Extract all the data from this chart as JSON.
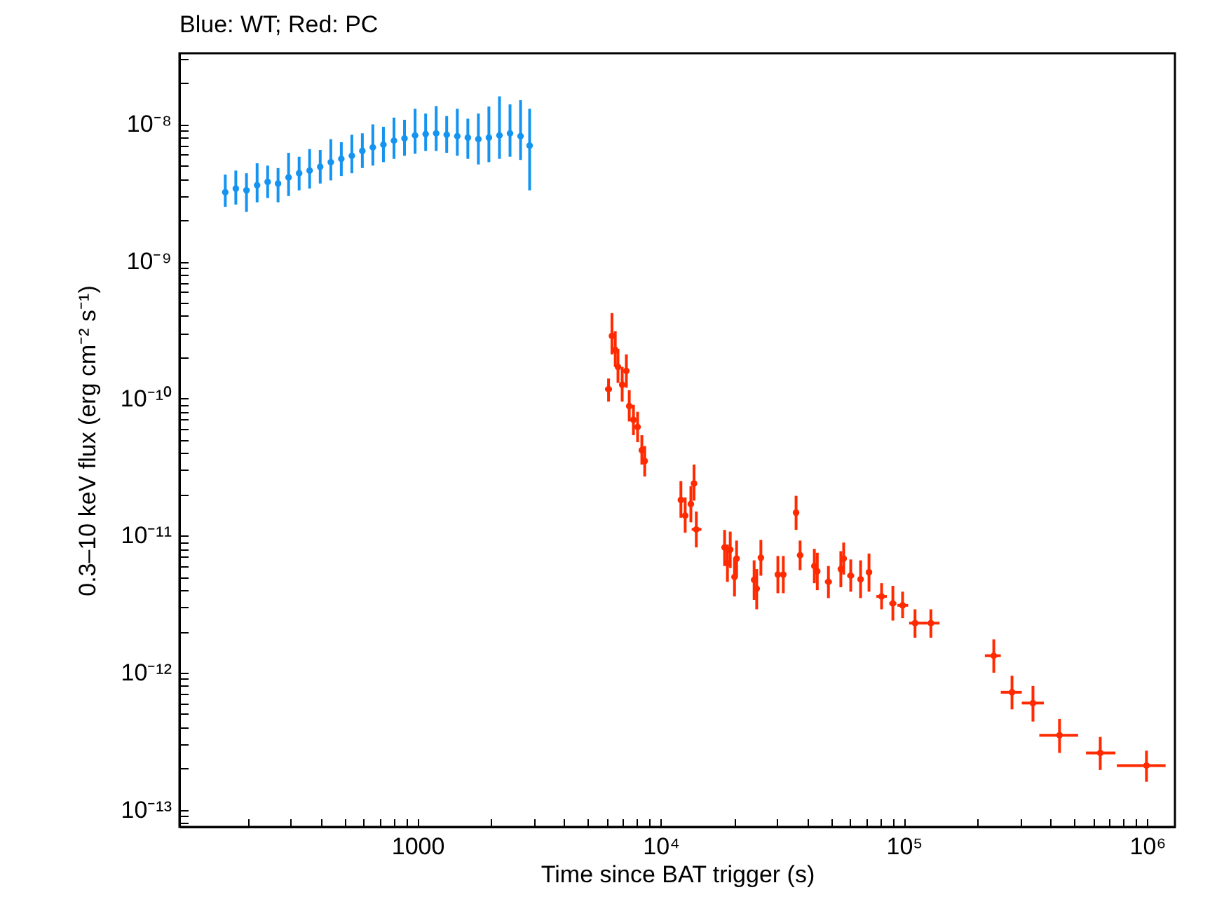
{
  "chart_data": {
    "type": "scatter",
    "title": "Blue: WT; Red: PC",
    "xlabel": "Time since BAT trigger (s)",
    "ylabel": "0.3–10 keV flux (erg cm⁻² s⁻¹)",
    "log": "xy",
    "xlim": [
      105,
      1300000
    ],
    "ylim": [
      7.5e-14,
      3.3e-08
    ],
    "xticks": [
      {
        "value": 200,
        "label": null
      },
      {
        "value": 300,
        "label": null
      },
      {
        "value": 400,
        "label": null
      },
      {
        "value": 500,
        "label": null
      },
      {
        "value": 600,
        "label": null
      },
      {
        "value": 700,
        "label": null
      },
      {
        "value": 800,
        "label": null
      },
      {
        "value": 900,
        "label": null
      },
      1000,
      {
        "value": 2000,
        "label": null
      },
      {
        "value": 3000,
        "label": null
      },
      {
        "value": 4000,
        "label": null
      },
      {
        "value": 5000,
        "label": null
      },
      {
        "value": 6000,
        "label": null
      },
      {
        "value": 7000,
        "label": null
      },
      {
        "value": 8000,
        "label": null
      },
      {
        "value": 9000,
        "label": null
      },
      {
        "value": 10000,
        "label": "10⁴"
      },
      {
        "value": 20000,
        "label": null
      },
      {
        "value": 30000,
        "label": null
      },
      {
        "value": 40000,
        "label": null
      },
      {
        "value": 50000,
        "label": null
      },
      {
        "value": 60000,
        "label": null
      },
      {
        "value": 70000,
        "label": null
      },
      {
        "value": 80000,
        "label": null
      },
      {
        "value": 90000,
        "label": null
      },
      {
        "value": 100000,
        "label": "10⁵"
      },
      {
        "value": 200000,
        "label": null
      },
      {
        "value": 300000,
        "label": null
      },
      {
        "value": 400000,
        "label": null
      },
      {
        "value": 500000,
        "label": null
      },
      {
        "value": 600000,
        "label": null
      },
      {
        "value": 700000,
        "label": null
      },
      {
        "value": 800000,
        "label": null
      },
      {
        "value": 900000,
        "label": null
      },
      {
        "value": 1000000,
        "label": "10⁶"
      }
    ],
    "yticks": [
      {
        "value": 8e-14,
        "label": null
      },
      {
        "value": 9e-14,
        "label": null
      },
      {
        "value": 1e-13,
        "label": "10⁻¹³"
      },
      {
        "value": 2e-13,
        "label": null
      },
      {
        "value": 3e-13,
        "label": null
      },
      {
        "value": 4e-13,
        "label": null
      },
      {
        "value": 5e-13,
        "label": null
      },
      {
        "value": 6e-13,
        "label": null
      },
      {
        "value": 7e-13,
        "label": null
      },
      {
        "value": 8e-13,
        "label": null
      },
      {
        "value": 9e-13,
        "label": null
      },
      {
        "value": 1e-12,
        "label": "10⁻¹²"
      },
      {
        "value": 2e-12,
        "label": null
      },
      {
        "value": 3e-12,
        "label": null
      },
      {
        "value": 4e-12,
        "label": null
      },
      {
        "value": 5e-12,
        "label": null
      },
      {
        "value": 6e-12,
        "label": null
      },
      {
        "value": 7e-12,
        "label": null
      },
      {
        "value": 8e-12,
        "label": null
      },
      {
        "value": 9e-12,
        "label": null
      },
      {
        "value": 1e-11,
        "label": "10⁻¹¹"
      },
      {
        "value": 2e-11,
        "label": null
      },
      {
        "value": 3e-11,
        "label": null
      },
      {
        "value": 4e-11,
        "label": null
      },
      {
        "value": 5e-11,
        "label": null
      },
      {
        "value": 6e-11,
        "label": null
      },
      {
        "value": 7e-11,
        "label": null
      },
      {
        "value": 8e-11,
        "label": null
      },
      {
        "value": 9e-11,
        "label": null
      },
      {
        "value": 1e-10,
        "label": "10⁻¹⁰"
      },
      {
        "value": 2e-10,
        "label": null
      },
      {
        "value": 3e-10,
        "label": null
      },
      {
        "value": 4e-10,
        "label": null
      },
      {
        "value": 5e-10,
        "label": null
      },
      {
        "value": 6e-10,
        "label": null
      },
      {
        "value": 7e-10,
        "label": null
      },
      {
        "value": 8e-10,
        "label": null
      },
      {
        "value": 9e-10,
        "label": null
      },
      {
        "value": 1e-09,
        "label": "10⁻⁹"
      },
      {
        "value": 2e-09,
        "label": null
      },
      {
        "value": 3e-09,
        "label": null
      },
      {
        "value": 4e-09,
        "label": null
      },
      {
        "value": 5e-09,
        "label": null
      },
      {
        "value": 6e-09,
        "label": null
      },
      {
        "value": 7e-09,
        "label": null
      },
      {
        "value": 8e-09,
        "label": null
      },
      {
        "value": 9e-09,
        "label": null
      },
      {
        "value": 1e-08,
        "label": "10⁻⁸"
      },
      {
        "value": 2e-08,
        "label": null
      },
      {
        "value": 3e-08,
        "label": null
      }
    ],
    "series": [
      {
        "color": "#1494f0",
        "x": [
          162,
          179,
          198,
          219,
          242,
          267,
          295,
          326,
          360,
          398,
          440,
          486,
          537,
          593,
          655,
          724,
          800,
          884,
          977,
          1080,
          1193,
          1318,
          1457,
          1610,
          1779,
          1965,
          2172,
          2400,
          2652,
          2890
        ],
        "values": [
          3.2e-09,
          3.4e-09,
          3.3e-09,
          3.6e-09,
          3.8e-09,
          3.7e-09,
          4.1e-09,
          4.4e-09,
          4.6e-09,
          4.9e-09,
          5.3e-09,
          5.6e-09,
          5.9e-09,
          6.4e-09,
          6.8e-09,
          7.1e-09,
          7.6e-09,
          7.9e-09,
          8.3e-09,
          8.5e-09,
          8.6e-09,
          8.4e-09,
          8.2e-09,
          8e-09,
          7.8e-09,
          8e-09,
          8.3e-09,
          8.6e-09,
          8.2e-09,
          7e-09
        ],
        "errors": [
          [
            2.5e-09,
            4.3e-09
          ],
          [
            2.6e-09,
            4.6e-09
          ],
          [
            2.3e-09,
            4.4e-09
          ],
          [
            2.7e-09,
            5.2e-09
          ],
          [
            2.9e-09,
            5e-09
          ],
          [
            2.7e-09,
            4.8e-09
          ],
          [
            3e-09,
            6.2e-09
          ],
          [
            3.3e-09,
            5.8e-09
          ],
          [
            3.4e-09,
            6.6e-09
          ],
          [
            3.7e-09,
            6.5e-09
          ],
          [
            3.9e-09,
            7.8e-09
          ],
          [
            4.2e-09,
            7.4e-09
          ],
          [
            4.4e-09,
            8.4e-09
          ],
          [
            4.8e-09,
            8.6e-09
          ],
          [
            5e-09,
            1e-08
          ],
          [
            5.3e-09,
            9.6e-09
          ],
          [
            5.6e-09,
            1.12e-08
          ],
          [
            5.9e-09,
            1.08e-08
          ],
          [
            6.1e-09,
            1.3e-08
          ],
          [
            6.4e-09,
            1.2e-08
          ],
          [
            6.4e-09,
            1.36e-08
          ],
          [
            6.2e-09,
            1.15e-08
          ],
          [
            5.9e-09,
            1.3e-08
          ],
          [
            5.6e-09,
            1.1e-08
          ],
          [
            5.1e-09,
            1.2e-08
          ],
          [
            5.3e-09,
            1.35e-08
          ],
          [
            5.6e-09,
            1.6e-08
          ],
          [
            5.8e-09,
            1.4e-08
          ],
          [
            5.5e-09,
            1.5e-08
          ],
          [
            3.3e-09,
            1.3e-08
          ]
        ]
      },
      {
        "color": "#ff2a00",
        "x": [
          6100,
          6300,
          6500,
          6670,
          6940,
          7220,
          7420,
          7720,
          8030,
          8360,
          8590,
          12100,
          12600,
          13300,
          13700,
          14000,
          18300,
          18800,
          19300,
          20100,
          20500,
          24200,
          24800,
          25800,
          30300,
          31900,
          36000,
          37400,
          42800,
          44000,
          48900,
          55000,
          56500,
          60400,
          66300,
          71800,
          80900,
          90000,
          98700,
          111000,
          129000,
          234000,
          278000,
          339000,
          436000,
          641000,
          993000
        ],
        "values": [
          1.17e-10,
          2.86e-10,
          2.26e-10,
          1.7e-10,
          1.26e-10,
          1.59e-10,
          8.8e-11,
          7e-11,
          6.2e-11,
          4.2e-11,
          3.5e-11,
          1.82e-11,
          1.4e-11,
          1.7e-11,
          2.4e-11,
          1.11e-11,
          8.2e-12,
          6.3e-12,
          7.9e-12,
          5e-12,
          6.8e-12,
          4.75e-12,
          4.1e-12,
          6.9e-12,
          5.2e-12,
          5.2e-12,
          1.47e-11,
          7.2e-12,
          6e-12,
          5.5e-12,
          4.6e-12,
          5.7e-12,
          6.8e-12,
          5.1e-12,
          4.8e-12,
          5.4e-12,
          3.6e-12,
          3.2e-12,
          3.1e-12,
          2.3e-12,
          2.3e-12,
          1.33e-12,
          7.2e-13,
          6e-13,
          3.5e-13,
          2.6e-13,
          2.1e-13
        ],
        "errors": [
          [
            9.5e-11,
            1.4e-10
          ],
          [
            2.1e-10,
            4.2e-10
          ],
          [
            1.7e-10,
            3.1e-10
          ],
          [
            1.3e-10,
            2.3e-10
          ],
          [
            9.5e-11,
            1.7e-10
          ],
          [
            1.2e-10,
            2.1e-10
          ],
          [
            6.8e-11,
            1.15e-10
          ],
          [
            5.4e-11,
            9e-11
          ],
          [
            4.8e-11,
            8e-11
          ],
          [
            3.3e-11,
            5.4e-11
          ],
          [
            2.7e-11,
            4.5e-11
          ],
          [
            1.35e-11,
            2.5e-11
          ],
          [
            1.05e-11,
            1.9e-11
          ],
          [
            1.25e-11,
            2.3e-11
          ],
          [
            1.8e-11,
            3.3e-11
          ],
          [
            8.2e-12,
            1.5e-11
          ],
          [
            6e-12,
            1.1e-11
          ],
          [
            4.6e-12,
            8.6e-12
          ],
          [
            5.8e-12,
            1.07e-11
          ],
          [
            3.6e-12,
            6.9e-12
          ],
          [
            5e-12,
            9.2e-12
          ],
          [
            3.4e-12,
            6.6e-12
          ],
          [
            2.9e-12,
            5.7e-12
          ],
          [
            5.1e-12,
            9.3e-12
          ],
          [
            3.8e-12,
            7.1e-12
          ],
          [
            3.8e-12,
            7.1e-12
          ],
          [
            1.1e-11,
            1.95e-11
          ],
          [
            5.6e-12,
            9.2e-12
          ],
          [
            4.5e-12,
            8e-12
          ],
          [
            4e-12,
            7.5e-12
          ],
          [
            3.5e-12,
            6e-12
          ],
          [
            4.2e-12,
            7.7e-12
          ],
          [
            5.2e-12,
            8.9e-12
          ],
          [
            3.9e-12,
            6.7e-12
          ],
          [
            3.5e-12,
            6.6e-12
          ],
          [
            3.9e-12,
            7.4e-12
          ],
          [
            2.9e-12,
            4.5e-12
          ],
          [
            2.4e-12,
            4.3e-12
          ],
          [
            2.5e-12,
            3.9e-12
          ],
          [
            1.8e-12,
            2.9e-12
          ],
          [
            1.8e-12,
            2.9e-12
          ],
          [
            1e-12,
            1.75e-12
          ],
          [
            5.4e-13,
            9.5e-13
          ],
          [
            4.4e-13,
            8e-13
          ],
          [
            2.6e-13,
            4.6e-13
          ],
          [
            1.95e-13,
            3.4e-13
          ],
          [
            1.6e-13,
            2.7e-13
          ]
        ],
        "xerrors": [
          [
            5900,
            6300
          ],
          [
            6200,
            6400
          ],
          [
            6400,
            6600
          ],
          [
            6550,
            6800
          ],
          [
            6800,
            7080
          ],
          [
            7080,
            7360
          ],
          [
            7300,
            7550
          ],
          [
            7580,
            7860
          ],
          [
            7880,
            8180
          ],
          [
            8200,
            8500
          ],
          [
            8450,
            8750
          ],
          [
            11800,
            12400
          ],
          [
            12300,
            12900
          ],
          [
            13000,
            13600
          ],
          [
            13400,
            14000
          ],
          [
            13400,
            14700
          ],
          [
            17900,
            18700
          ],
          [
            18400,
            19200
          ],
          [
            18900,
            19700
          ],
          [
            19700,
            20500
          ],
          [
            20000,
            21000
          ],
          [
            23600,
            24800
          ],
          [
            24200,
            25400
          ],
          [
            25200,
            26400
          ],
          [
            29500,
            31100
          ],
          [
            31100,
            32700
          ],
          [
            35400,
            36600
          ],
          [
            36400,
            38400
          ],
          [
            41800,
            43800
          ],
          [
            43000,
            45000
          ],
          [
            47300,
            50500
          ],
          [
            54000,
            56000
          ],
          [
            55500,
            57500
          ],
          [
            58400,
            62400
          ],
          [
            65000,
            67600
          ],
          [
            70500,
            73100
          ],
          [
            77000,
            85000
          ],
          [
            87000,
            93000
          ],
          [
            94000,
            104000
          ],
          [
            105000,
            120000
          ],
          [
            120000,
            140000
          ],
          [
            215000,
            250000
          ],
          [
            250000,
            305000
          ],
          [
            305000,
            376000
          ],
          [
            360000,
            520000
          ],
          [
            560000,
            740000
          ],
          [
            750000,
            1190000
          ]
        ]
      }
    ]
  }
}
